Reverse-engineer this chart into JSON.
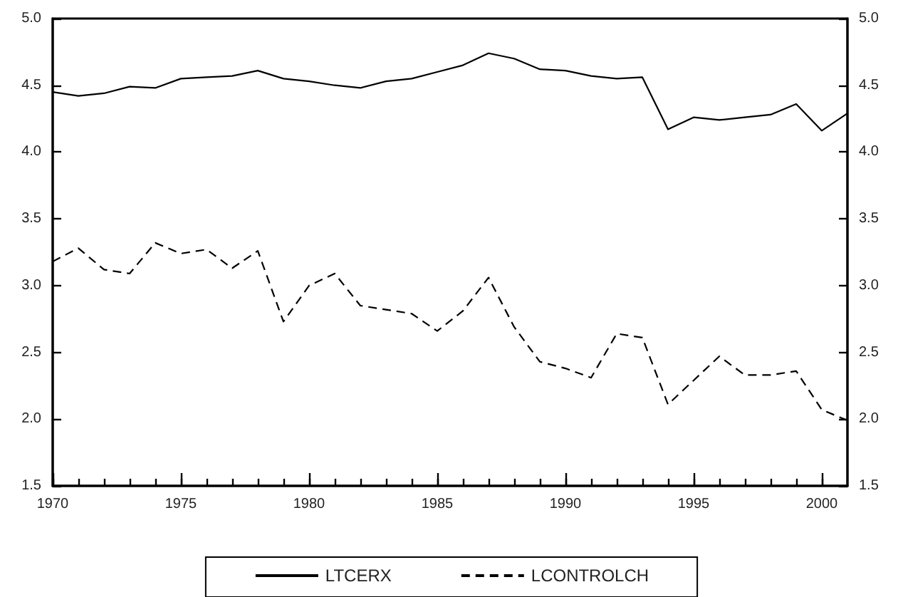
{
  "chart_data": {
    "type": "line",
    "x": [
      1970,
      1971,
      1972,
      1973,
      1974,
      1975,
      1976,
      1977,
      1978,
      1979,
      1980,
      1981,
      1982,
      1983,
      1984,
      1985,
      1986,
      1987,
      1988,
      1989,
      1990,
      1991,
      1992,
      1993,
      1994,
      1995,
      1996,
      1997,
      1998,
      1999,
      2000,
      2001
    ],
    "series": [
      {
        "name": "LTCERX",
        "color": "#000000",
        "line_style": "solid",
        "values": [
          4.45,
          4.42,
          4.44,
          4.49,
          4.48,
          4.55,
          4.56,
          4.57,
          4.61,
          4.55,
          4.53,
          4.5,
          4.48,
          4.53,
          4.55,
          4.6,
          4.65,
          4.74,
          4.7,
          4.62,
          4.61,
          4.57,
          4.55,
          4.56,
          4.17,
          4.26,
          4.24,
          4.26,
          4.28,
          4.36,
          4.16,
          4.29
        ]
      },
      {
        "name": "LCONTROLCH",
        "color": "#000000",
        "line_style": "dashed",
        "values": [
          3.18,
          3.28,
          3.12,
          3.09,
          3.32,
          3.24,
          3.27,
          3.13,
          3.26,
          2.73,
          3.0,
          3.09,
          2.85,
          2.82,
          2.79,
          2.66,
          2.81,
          3.06,
          2.69,
          2.43,
          2.38,
          2.31,
          2.64,
          2.61,
          2.11,
          2.29,
          2.47,
          2.33,
          2.33,
          2.36,
          2.07,
          1.99
        ]
      }
    ],
    "xlim": [
      1970,
      2001
    ],
    "xticks": [
      1970,
      {
        "value": 1971,
        "label": null
      },
      {
        "value": 1972,
        "label": null
      },
      {
        "value": 1973,
        "label": null
      },
      {
        "value": 1974,
        "label": null
      },
      1975,
      {
        "value": 1976,
        "label": null
      },
      {
        "value": 1977,
        "label": null
      },
      {
        "value": 1978,
        "label": null
      },
      {
        "value": 1979,
        "label": null
      },
      1980,
      {
        "value": 1981,
        "label": null
      },
      {
        "value": 1982,
        "label": null
      },
      {
        "value": 1983,
        "label": null
      },
      {
        "value": 1984,
        "label": null
      },
      1985,
      {
        "value": 1986,
        "label": null
      },
      {
        "value": 1987,
        "label": null
      },
      {
        "value": 1988,
        "label": null
      },
      {
        "value": 1989,
        "label": null
      },
      1990,
      {
        "value": 1991,
        "label": null
      },
      {
        "value": 1992,
        "label": null
      },
      {
        "value": 1993,
        "label": null
      },
      {
        "value": 1994,
        "label": null
      },
      1995,
      {
        "value": 1996,
        "label": null
      },
      {
        "value": 1997,
        "label": null
      },
      {
        "value": 1998,
        "label": null
      },
      {
        "value": 1999,
        "label": null
      },
      2000
    ],
    "ylim": [
      1.5,
      5.0
    ],
    "yticks": [
      1.5,
      {
        "value": 2,
        "label": "2.0"
      },
      2.5,
      {
        "value": 3,
        "label": "3.0"
      },
      3.5,
      {
        "value": 4,
        "label": "4.0"
      },
      4.5,
      {
        "value": 5,
        "label": "5.0"
      }
    ],
    "y2lim": [
      1.5,
      5.0
    ],
    "y2ticks": [
      1.5,
      {
        "value": 2,
        "label": "2.0"
      },
      2.5,
      {
        "value": 3,
        "label": "3.0"
      },
      3.5,
      {
        "value": 4,
        "label": "4.0"
      },
      4.5,
      {
        "value": 5,
        "label": "5.0"
      }
    ],
    "grid": false,
    "legend": "bottom",
    "marker": "none"
  }
}
